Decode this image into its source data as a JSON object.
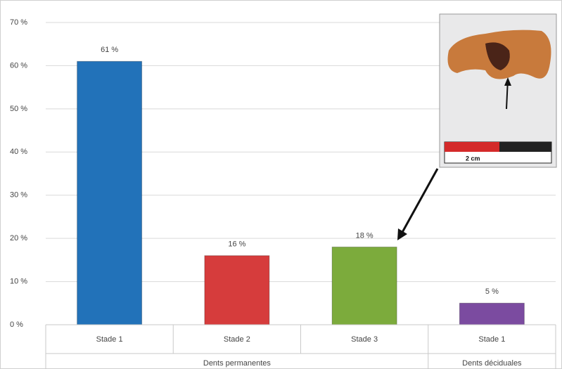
{
  "chart_data": {
    "type": "bar",
    "categories": [
      "Stade 1",
      "Stade 2",
      "Stade 3",
      "Stade 1"
    ],
    "category_groups": [
      "Dents permanentes",
      "Dents permanentes",
      "Dents permanentes",
      "Dents déciduales"
    ],
    "values": [
      61,
      16,
      18,
      5
    ],
    "value_labels": [
      "61 %",
      "16 %",
      "18 %",
      "5 %"
    ],
    "colors": [
      "#2272b9",
      "#d63c3c",
      "#7cab3c",
      "#7b4ba0"
    ],
    "ylim": [
      0,
      70
    ],
    "yticks": [
      {
        "value": 0,
        "label": "0 %"
      },
      {
        "value": 10,
        "label": "10 %"
      },
      {
        "value": 20,
        "label": "20 %"
      },
      {
        "value": 30,
        "label": "30 %"
      },
      {
        "value": 40,
        "label": "40 %"
      },
      {
        "value": 50,
        "label": "50 %"
      },
      {
        "value": 60,
        "label": "60 %"
      },
      {
        "value": 70,
        "label": "70 %"
      }
    ],
    "grid": true
  },
  "inset": {
    "scale_label": "2 cm"
  }
}
